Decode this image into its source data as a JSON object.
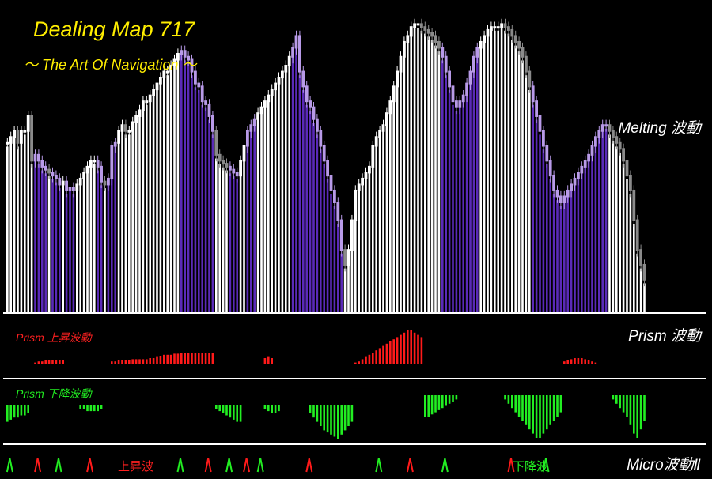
{
  "header": {
    "title": "Dealing Map 717",
    "subtitle": "～ The Art Of Navigation ～"
  },
  "labels": {
    "melting": "Melting 波動",
    "prism": "Prism 波動",
    "prism_up": "Prism 上昇波動",
    "prism_down": "Prism 下降波動",
    "micro": "Micro波動Ⅱ",
    "micro_up_tag": "上昇波",
    "micro_down_tag": "下降波"
  },
  "colors": {
    "background": "#000000",
    "title": "#ffee00",
    "bar_white": "#ffffff",
    "bar_purple": "#5a2ab8",
    "bar_lavender": "#b89ae8",
    "candle_gray": "#8a8a8a",
    "prism_up": "#ff1a1a",
    "prism_down": "#22ee22",
    "separator": "#ffffff"
  },
  "chart_data": {
    "type": "bar",
    "melting": {
      "values": [
        56,
        58,
        60,
        56,
        60,
        60,
        65,
        50,
        52,
        50,
        48,
        47,
        46,
        45,
        44,
        42,
        43,
        40,
        41,
        40,
        42,
        44,
        46,
        48,
        50,
        50,
        48,
        43,
        42,
        44,
        55,
        56,
        60,
        62,
        60,
        60,
        63,
        65,
        67,
        70,
        70,
        72,
        74,
        76,
        78,
        80,
        80,
        82,
        84,
        86,
        87,
        85,
        84,
        80,
        76,
        75,
        70,
        69,
        65,
        60,
        52,
        50,
        49,
        48,
        47,
        46,
        45,
        50,
        55,
        60,
        62,
        64,
        66,
        68,
        70,
        72,
        74,
        76,
        78,
        80,
        82,
        85,
        88,
        92,
        80,
        75,
        70,
        68,
        64,
        60,
        55,
        50,
        45,
        40,
        36,
        30,
        20,
        15,
        20,
        30,
        40,
        42,
        44,
        46,
        48,
        55,
        58,
        60,
        62,
        66,
        70,
        75,
        80,
        85,
        90,
        92,
        95,
        96,
        96,
        95,
        94,
        93,
        92,
        90,
        88,
        85,
        80,
        75,
        70,
        68,
        70,
        72,
        76,
        80,
        85,
        88,
        90,
        92,
        94,
        95,
        95,
        95,
        96,
        95,
        94,
        92,
        90,
        88,
        85,
        80,
        75,
        70,
        65,
        60,
        55,
        50,
        45,
        40,
        38,
        36,
        38,
        40,
        42,
        44,
        46,
        48,
        50,
        52,
        55,
        58,
        60,
        62,
        62,
        60,
        58,
        56,
        54,
        50,
        45,
        40,
        30,
        20,
        15,
        10
      ],
      "bar_colors": "wwwwwwwwppppwpppwpppwwwwwwppwpppwwwwwwwwwwwwwwwwwwppppppppppwwwwpppwwpppwwwwwwwwwwpppppppppppppppwwwwwwwwwwwwwwwwwwwwwwwwwwwwpppppppppppwwwwwwwwwwwwwwwppppppppppppppppppppppwwwwwwwwwwwppppppppppppppp"
    },
    "prism_up": {
      "values": [
        0,
        0,
        0,
        0,
        0,
        0,
        0,
        0,
        1,
        2,
        2,
        3,
        3,
        3,
        3,
        3,
        3,
        0,
        0,
        0,
        0,
        0,
        0,
        0,
        0,
        0,
        0,
        0,
        0,
        0,
        2,
        2,
        3,
        3,
        3,
        3,
        4,
        4,
        4,
        4,
        4,
        5,
        5,
        6,
        7,
        8,
        8,
        8,
        9,
        9,
        10,
        10,
        10,
        10,
        10,
        10,
        10,
        10,
        10,
        10,
        0,
        0,
        0,
        0,
        0,
        0,
        0,
        0,
        0,
        0,
        0,
        0,
        0,
        0,
        5,
        6,
        5,
        0,
        0,
        0,
        0,
        0,
        0,
        0,
        0,
        0,
        0,
        0,
        0,
        0,
        0,
        0,
        0,
        0,
        0,
        0,
        0,
        0,
        0,
        0,
        1,
        2,
        4,
        6,
        8,
        10,
        12,
        14,
        16,
        18,
        20,
        22,
        24,
        26,
        28,
        30,
        30,
        28,
        26,
        24,
        0,
        0,
        0,
        0,
        0,
        0,
        0,
        0,
        0,
        0,
        0,
        0,
        0,
        0,
        0,
        0,
        0,
        0,
        0,
        0,
        0,
        0,
        0,
        0,
        0,
        0,
        0,
        0,
        0,
        0,
        0,
        0,
        0,
        0,
        0,
        0,
        0,
        0,
        0,
        0,
        2,
        3,
        4,
        5,
        5,
        5,
        4,
        3,
        2,
        1,
        0,
        0,
        0,
        0,
        0,
        0,
        0,
        0,
        0,
        0,
        0,
        0,
        0,
        0
      ]
    },
    "prism_down": {
      "values": [
        8,
        7,
        6,
        6,
        5,
        5,
        4,
        0,
        0,
        0,
        0,
        0,
        0,
        0,
        0,
        0,
        0,
        0,
        0,
        0,
        0,
        2,
        2,
        3,
        3,
        3,
        3,
        2,
        0,
        0,
        0,
        0,
        0,
        0,
        0,
        0,
        0,
        0,
        0,
        0,
        0,
        0,
        0,
        0,
        0,
        0,
        0,
        0,
        0,
        0,
        0,
        0,
        0,
        0,
        0,
        0,
        0,
        0,
        0,
        0,
        2,
        3,
        4,
        5,
        6,
        7,
        8,
        8,
        0,
        0,
        0,
        0,
        0,
        0,
        2,
        3,
        4,
        4,
        3,
        0,
        0,
        0,
        0,
        0,
        0,
        0,
        0,
        4,
        6,
        8,
        10,
        12,
        13,
        14,
        15,
        16,
        14,
        12,
        10,
        8,
        0,
        0,
        0,
        0,
        0,
        0,
        0,
        0,
        0,
        0,
        0,
        0,
        0,
        0,
        0,
        0,
        0,
        0,
        0,
        0,
        10,
        10,
        9,
        8,
        7,
        6,
        5,
        4,
        3,
        2,
        0,
        0,
        0,
        0,
        0,
        0,
        0,
        0,
        0,
        0,
        0,
        0,
        0,
        2,
        4,
        6,
        8,
        10,
        12,
        14,
        16,
        18,
        20,
        20,
        18,
        16,
        14,
        12,
        10,
        8,
        0,
        0,
        0,
        0,
        0,
        0,
        0,
        0,
        0,
        0,
        0,
        0,
        0,
        0,
        2,
        4,
        6,
        8,
        10,
        14,
        18,
        20,
        16,
        12
      ]
    },
    "micro_signals": [
      {
        "dir": "up",
        "bar": 1
      },
      {
        "dir": "down",
        "bar": 9
      },
      {
        "dir": "up",
        "bar": 15
      },
      {
        "dir": "down",
        "bar": 24
      },
      {
        "dir": "up",
        "bar": 50
      },
      {
        "dir": "down",
        "bar": 58
      },
      {
        "dir": "up",
        "bar": 64
      },
      {
        "dir": "down",
        "bar": 69
      },
      {
        "dir": "up",
        "bar": 73
      },
      {
        "dir": "down",
        "bar": 87
      },
      {
        "dir": "up",
        "bar": 107
      },
      {
        "dir": "down",
        "bar": 116
      },
      {
        "dir": "up",
        "bar": 126
      },
      {
        "dir": "down",
        "bar": 145
      },
      {
        "dir": "up",
        "bar": 155
      }
    ]
  }
}
